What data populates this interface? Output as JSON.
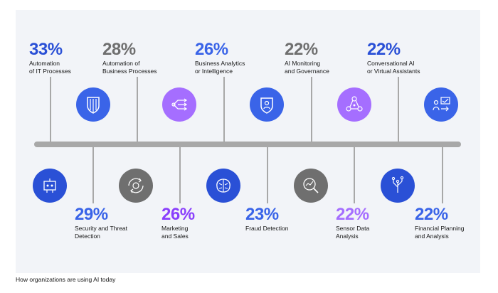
{
  "caption": "How organizations are using AI today",
  "colors": {
    "blue_dark": "#2a50d6",
    "blue": "#3a64e8",
    "gray": "#6f6f6f",
    "purple": "#a56eff",
    "purple_dark": "#8a3ffc",
    "bar": "#a8a8a8"
  },
  "top_items": [
    {
      "percent": "33%",
      "label": "Automation\nof IT Processes",
      "icon": "shield-icon"
    },
    {
      "percent": "28%",
      "label": "Automation of\nBusiness Processes",
      "icon": "workflow-icon"
    },
    {
      "percent": "26%",
      "label": "Business Analytics\nor Intelligence",
      "icon": "shield-user-icon"
    },
    {
      "percent": "22%",
      "label": "AI Monitoring\nand Governance",
      "icon": "network-nodes-icon"
    },
    {
      "percent": "22%",
      "label": "Conversational AI\nor Virtual Assistants",
      "icon": "chat-assistant-icon"
    }
  ],
  "bottom_items": [
    {
      "percent": "29%",
      "label": "Security and Threat\nDetection",
      "icon": "robot-icon"
    },
    {
      "percent": "26%",
      "label": "Marketing\nand Sales",
      "icon": "gear-refresh-icon"
    },
    {
      "percent": "23%",
      "label": "Fraud Detection",
      "icon": "brain-icon"
    },
    {
      "percent": "22%",
      "label": "Sensor Data\nAnalysis",
      "icon": "magnifier-chart-icon"
    },
    {
      "percent": "22%",
      "label": "Financial Planning\nand Analysis",
      "icon": "circuit-tree-icon"
    }
  ]
}
